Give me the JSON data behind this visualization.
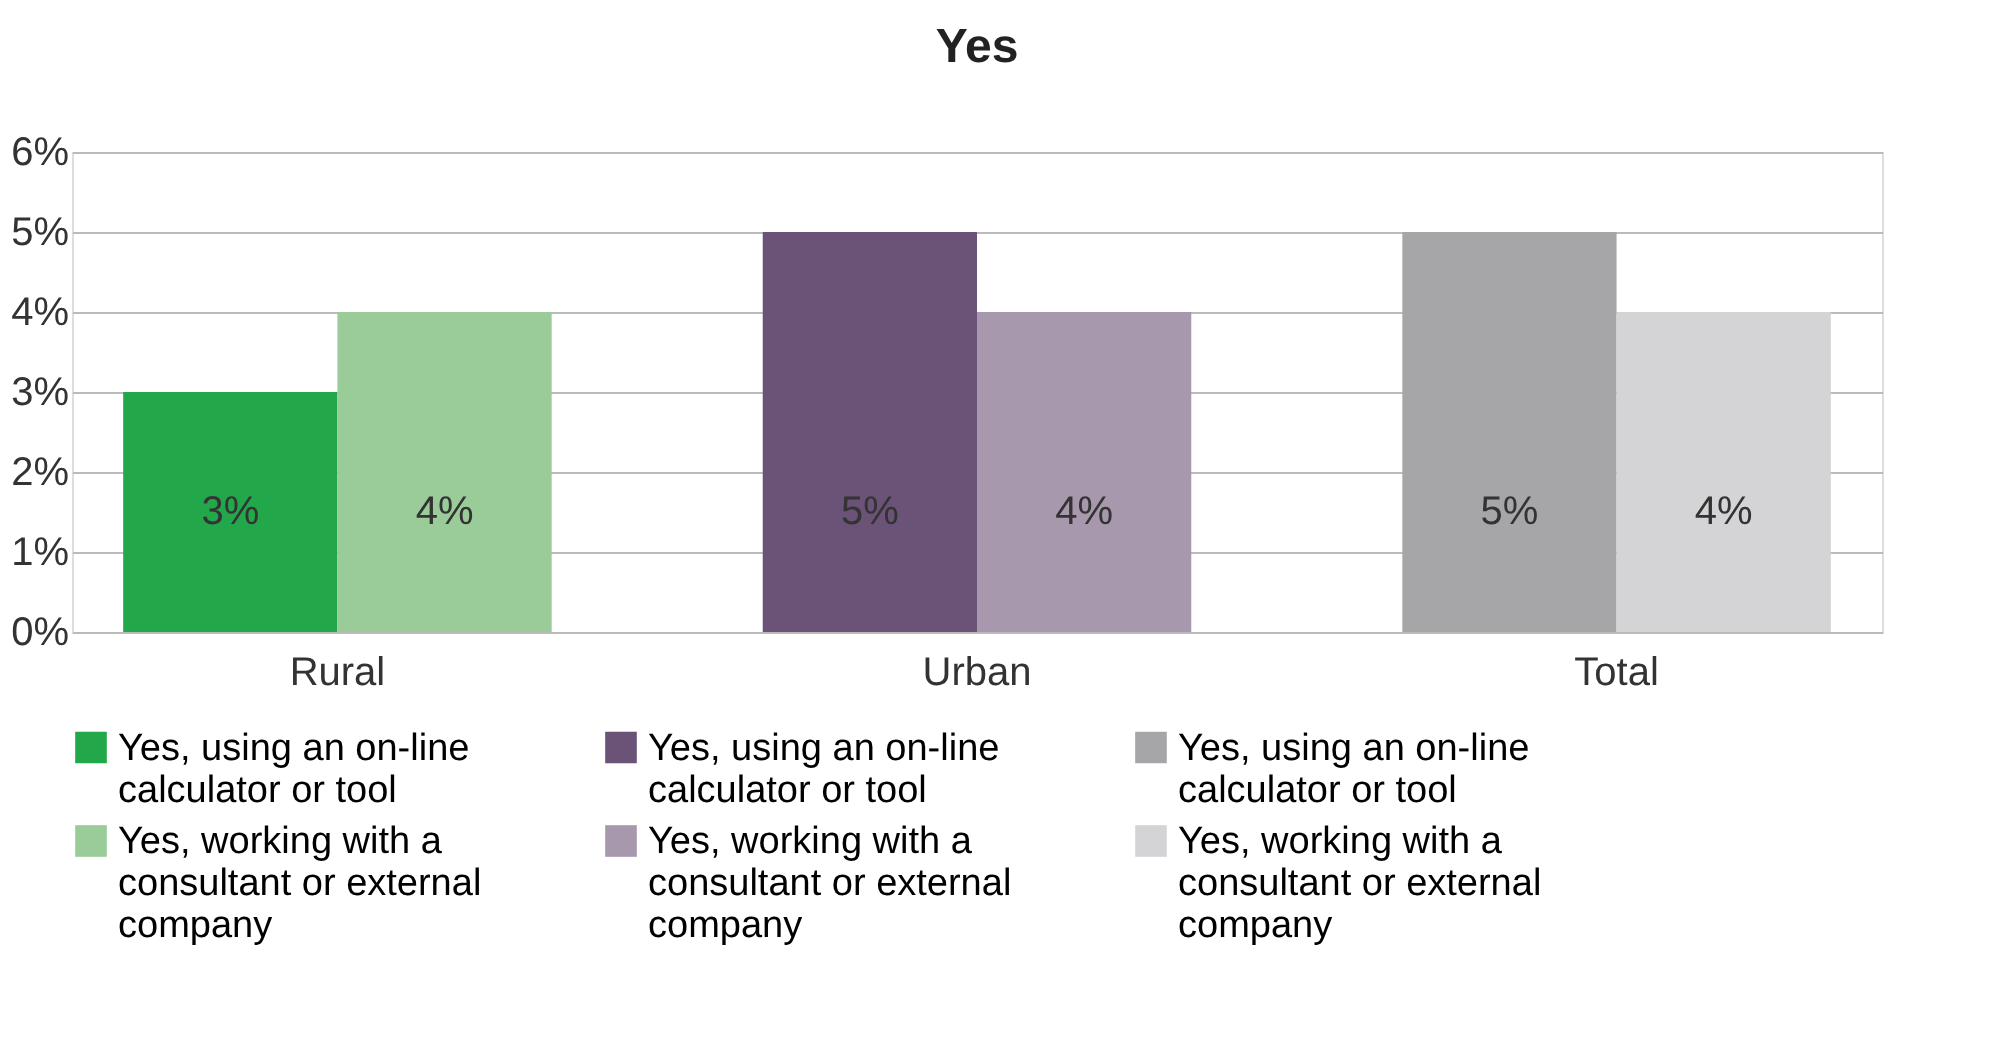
{
  "chart_data": {
    "type": "bar",
    "title": "Yes",
    "categories": [
      "Rural",
      "Urban",
      "Total"
    ],
    "series": [
      {
        "name": "Yes, using an on-line calculator or tool",
        "color": "#22a84a",
        "values": [
          3,
          null,
          null
        ],
        "value_labels": [
          "3%",
          null,
          null
        ]
      },
      {
        "name": "Yes, using an on-line calculator or tool",
        "color": "#6b5277",
        "values": [
          null,
          5,
          null
        ],
        "value_labels": [
          null,
          "5%",
          null
        ]
      },
      {
        "name": "Yes, using an on-line calculator or tool",
        "color": "#a6a6a9",
        "values": [
          null,
          null,
          5
        ],
        "value_labels": [
          null,
          null,
          "5%"
        ]
      },
      {
        "name": "Yes, working with a consultant or external company",
        "color": "#99cc99",
        "values": [
          4,
          null,
          null
        ],
        "value_labels": [
          "4%",
          null,
          null
        ]
      },
      {
        "name": "Yes, working with a consultant or external company",
        "color": "#a898ae",
        "values": [
          null,
          4,
          null
        ],
        "value_labels": [
          null,
          "4%",
          null
        ]
      },
      {
        "name": "Yes, working with a consultant or external company",
        "color": "#d4d4d6",
        "values": [
          null,
          null,
          4
        ],
        "value_labels": [
          null,
          null,
          "4%"
        ]
      }
    ],
    "ylim": [
      0,
      6
    ],
    "yticks": [
      {
        "value": 0,
        "label": "0%"
      },
      {
        "value": 1,
        "label": "1%"
      },
      {
        "value": 2,
        "label": "2%"
      },
      {
        "value": 3,
        "label": "3%"
      },
      {
        "value": 4,
        "label": "4%"
      },
      {
        "value": 5,
        "label": "5%"
      },
      {
        "value": 6,
        "label": "6%"
      }
    ],
    "grid": "y",
    "legend": "bottom"
  }
}
